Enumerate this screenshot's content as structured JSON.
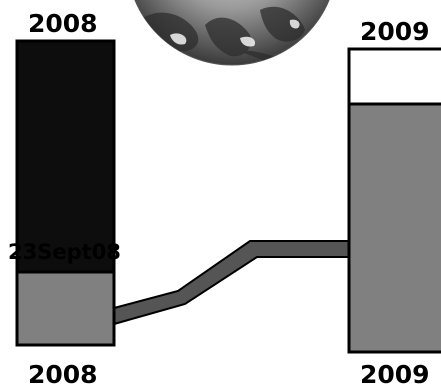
{
  "labels": {
    "left_top_year": "2008",
    "left_bottom_year": "2008",
    "right_top_year": "2009",
    "right_bottom_year": "2009",
    "date_annotation": "23Sept08"
  },
  "colors": {
    "left_upper_block": "#0d0d0d",
    "lower_blocks": "#808080",
    "right_upper_block": "#ffffff",
    "connector_band": "#555555",
    "outline": "#000000"
  },
  "icons": {
    "globe": "earth-globe-icon"
  }
}
